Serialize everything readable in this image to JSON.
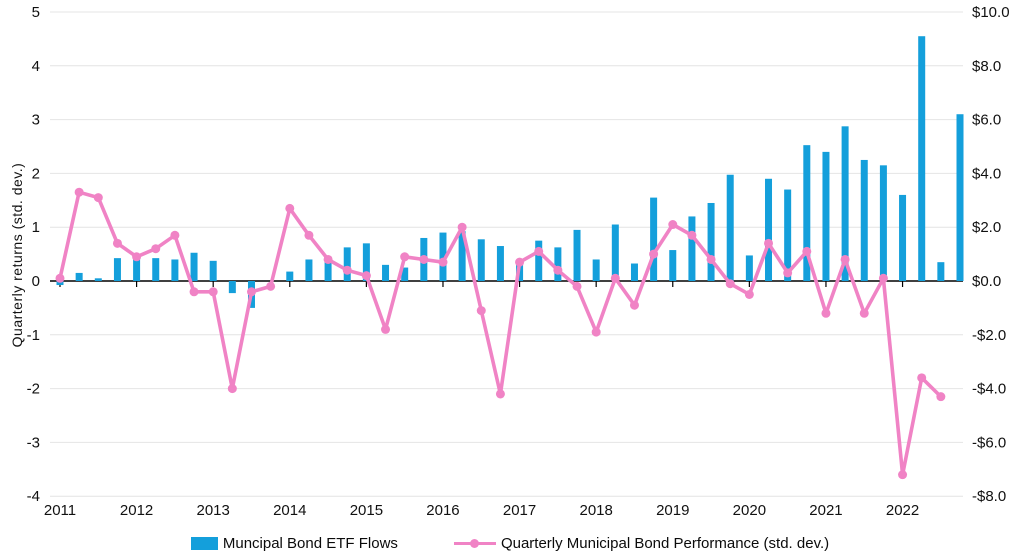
{
  "chart_data": {
    "type": "combo-bar-line",
    "title": "",
    "quarters": [
      "2011 Q1",
      "2011 Q2",
      "2011 Q3",
      "2011 Q4",
      "2012 Q1",
      "2012 Q2",
      "2012 Q3",
      "2012 Q4",
      "2013 Q1",
      "2013 Q2",
      "2013 Q3",
      "2013 Q4",
      "2014 Q1",
      "2014 Q2",
      "2014 Q3",
      "2014 Q4",
      "2015 Q1",
      "2015 Q2",
      "2015 Q3",
      "2015 Q4",
      "2016 Q1",
      "2016 Q2",
      "2016 Q3",
      "2016 Q4",
      "2017 Q1",
      "2017 Q2",
      "2017 Q3",
      "2017 Q4",
      "2018 Q1",
      "2018 Q2",
      "2018 Q3",
      "2018 Q4",
      "2019 Q1",
      "2019 Q2",
      "2019 Q3",
      "2019 Q4",
      "2020 Q1",
      "2020 Q2",
      "2020 Q3",
      "2020 Q4",
      "2021 Q1",
      "2021 Q2",
      "2021 Q3",
      "2021 Q4",
      "2022 Q1",
      "2022 Q2",
      "2022 Q3",
      "2022 Q4"
    ],
    "year_labels": [
      "2011",
      "2012",
      "2013",
      "2014",
      "2015",
      "2016",
      "2017",
      "2018",
      "2019",
      "2020",
      "2021",
      "2022"
    ],
    "series": [
      {
        "name": "Muncipal Bond ETF Flows",
        "type": "bar",
        "axis": "right",
        "unit": "$B",
        "color": "#149fdb",
        "values": [
          -0.15,
          0.3,
          0.1,
          0.85,
          0.85,
          0.85,
          0.8,
          1.05,
          0.75,
          -0.45,
          -1.0,
          0.0,
          0.35,
          0.8,
          0.8,
          1.25,
          1.4,
          0.6,
          0.5,
          1.6,
          1.8,
          1.85,
          1.55,
          1.3,
          0.8,
          1.5,
          1.25,
          1.9,
          0.8,
          2.1,
          0.65,
          3.1,
          1.15,
          2.4,
          2.9,
          3.95,
          0.95,
          3.8,
          3.4,
          5.05,
          4.8,
          5.75,
          4.5,
          4.3,
          3.2,
          9.1,
          0.7,
          6.2
        ]
      },
      {
        "name": "Quarterly Municipal Bond Performance (std. dev.)",
        "type": "line",
        "axis": "left",
        "unit": "std. dev.",
        "color": "#f083c5",
        "values": [
          0.05,
          1.65,
          1.55,
          0.7,
          0.45,
          0.6,
          0.85,
          -0.2,
          -0.2,
          -2.0,
          -0.2,
          -0.1,
          1.35,
          0.85,
          0.4,
          0.2,
          0.1,
          -0.9,
          0.45,
          0.4,
          0.35,
          1.0,
          -0.55,
          -2.1,
          0.35,
          0.55,
          0.2,
          -0.1,
          -0.95,
          0.05,
          -0.45,
          0.5,
          1.05,
          0.85,
          0.4,
          -0.05,
          -0.25,
          0.7,
          0.15,
          0.55,
          -0.6,
          0.4,
          -0.6,
          0.05,
          -3.6,
          -1.8,
          -2.15,
          null
        ]
      }
    ],
    "left_axis": {
      "title": "Quarterly returns (std. dev.)",
      "min": -4,
      "max": 5,
      "ticks": [
        5,
        4,
        3,
        2,
        1,
        0,
        -1,
        -2,
        -3,
        -4
      ]
    },
    "right_axis": {
      "labels": [
        "$10.0",
        "$8.0",
        "$6.0",
        "$4.0",
        "$2.0",
        "$0.0",
        "-$2.0",
        "-$4.0",
        "-$6.0",
        "-$8.0"
      ],
      "min": -8,
      "max": 10,
      "dollars_per_left_unit": 2
    },
    "grid": true,
    "legend_position": "bottom-center",
    "colors": {
      "bar": "#149fdb",
      "line": "#f083c5",
      "gridline": "#e4e4e4",
      "axis": "#000000",
      "text": "#111111"
    }
  },
  "legend": {
    "bar_label": "Muncipal Bond ETF Flows",
    "line_label": "Quarterly Municipal Bond Performance (std. dev.)"
  },
  "y_axis_title": "Quarterly returns (std. dev.)"
}
